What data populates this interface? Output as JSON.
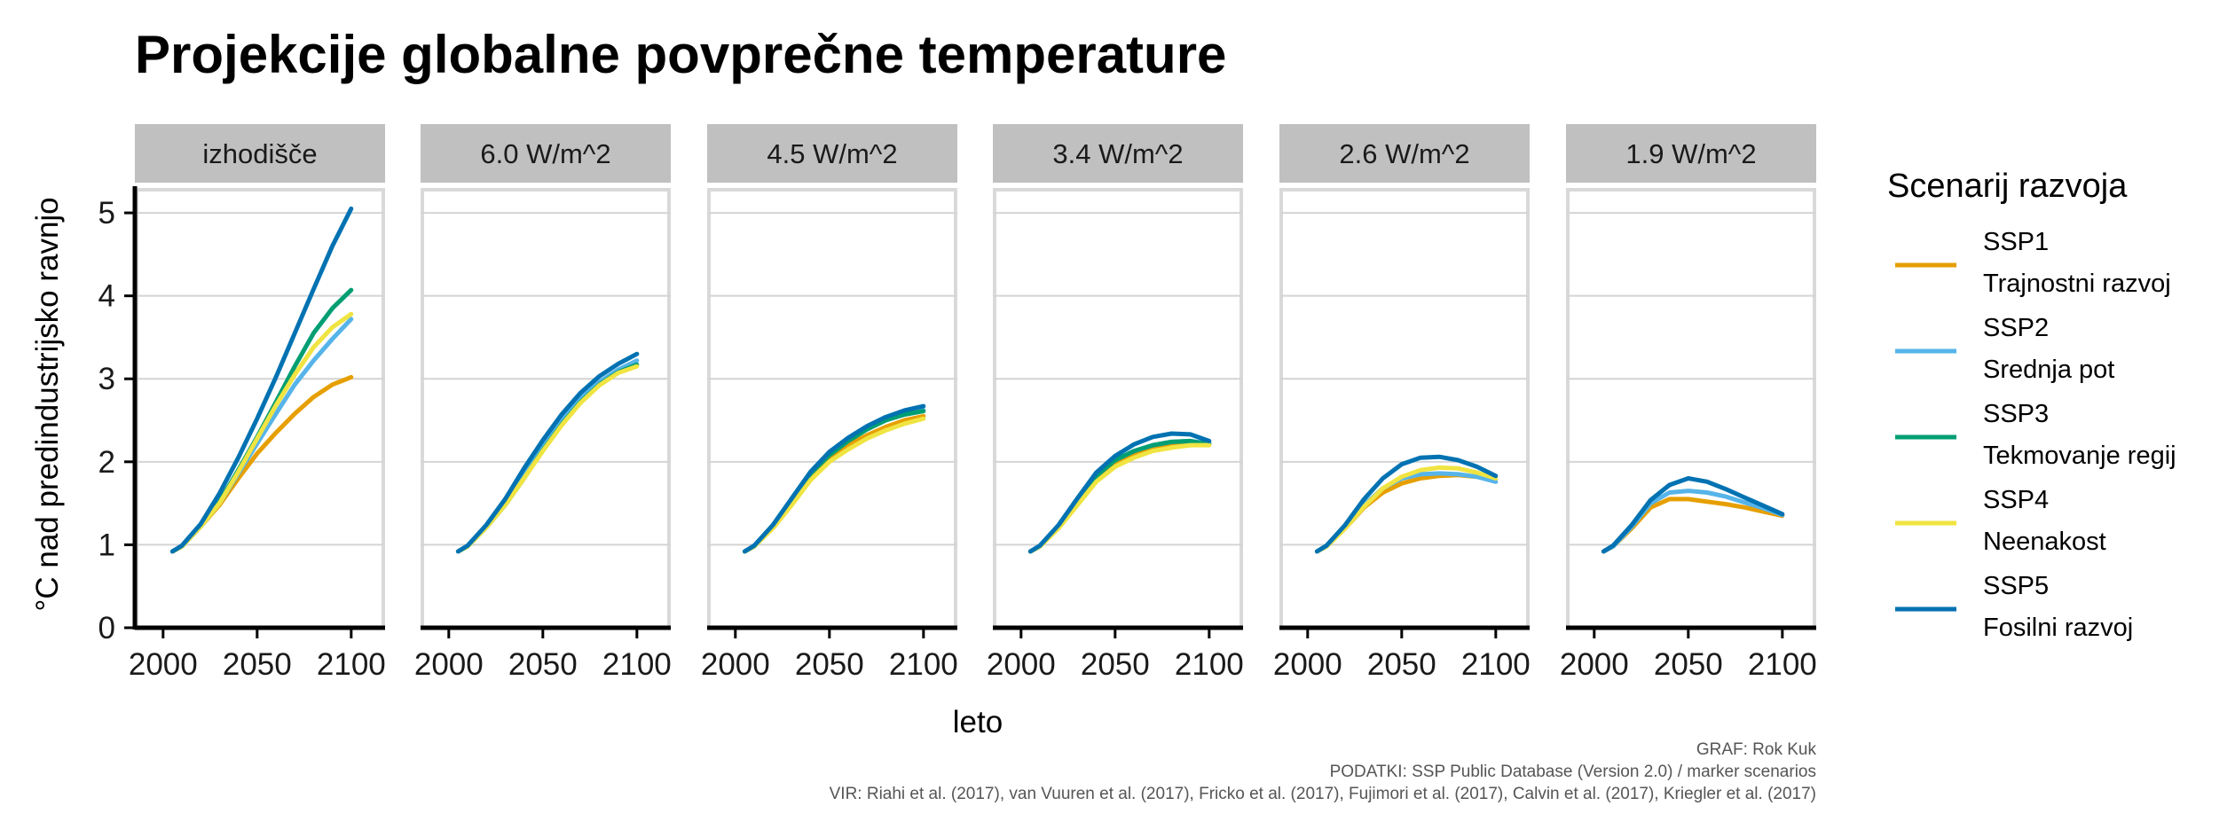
{
  "chart_data": {
    "type": "line",
    "title": "Projekcije globalne povprečne temperature",
    "xlabel": "leto",
    "ylabel": "°C nad predindustrijsko ravnjo",
    "xlim": [
      1985,
      2118
    ],
    "ylim": [
      0,
      5.3
    ],
    "x_ticks": [
      2000,
      2050,
      2100
    ],
    "y_ticks": [
      0,
      1,
      2,
      3,
      4,
      5
    ],
    "grid": "horizontal",
    "legend_position": "right",
    "legend_title": "Scenarij razvoja",
    "x": [
      2005,
      2010,
      2020,
      2030,
      2040,
      2050,
      2060,
      2070,
      2080,
      2090,
      2100
    ],
    "series_meta": [
      {
        "code": "SSP1",
        "name": "Trajnostni razvoj",
        "color": "#E69F00"
      },
      {
        "code": "SSP2",
        "name": "Srednja pot",
        "color": "#56B4E9"
      },
      {
        "code": "SSP3",
        "name": "Tekmovanje regij",
        "color": "#009E73"
      },
      {
        "code": "SSP4",
        "name": "Neenakost",
        "color": "#F0E442"
      },
      {
        "code": "SSP5",
        "name": "Fosilni razvoj",
        "color": "#0072B2"
      }
    ],
    "panels": [
      {
        "label": "izhodišče",
        "series": [
          {
            "code": "SSP1",
            "values": [
              0.92,
              0.98,
              1.22,
              1.48,
              1.8,
              2.1,
              2.35,
              2.58,
              2.78,
              2.93,
              3.02
            ]
          },
          {
            "code": "SSP2",
            "values": [
              0.92,
              0.98,
              1.22,
              1.5,
              1.86,
              2.22,
              2.58,
              2.93,
              3.22,
              3.48,
              3.72
            ]
          },
          {
            "code": "SSP3",
            "values": [
              0.92,
              0.98,
              1.22,
              1.52,
              1.9,
              2.3,
              2.72,
              3.15,
              3.55,
              3.85,
              4.07
            ]
          },
          {
            "code": "SSP4",
            "values": [
              0.92,
              0.98,
              1.22,
              1.5,
              1.88,
              2.28,
              2.68,
              3.05,
              3.38,
              3.62,
              3.78
            ]
          },
          {
            "code": "SSP5",
            "values": [
              0.92,
              0.99,
              1.25,
              1.62,
              2.05,
              2.52,
              3.02,
              3.55,
              4.08,
              4.6,
              5.05
            ]
          }
        ]
      },
      {
        "label": "6.0 W/m^2",
        "series": [
          {
            "code": "SSP2",
            "values": [
              0.92,
              0.98,
              1.22,
              1.5,
              1.85,
              2.2,
              2.5,
              2.76,
              2.96,
              3.11,
              3.22
            ]
          },
          {
            "code": "SSP3",
            "values": [
              0.92,
              0.98,
              1.21,
              1.48,
              1.8,
              2.14,
              2.45,
              2.72,
              2.93,
              3.08,
              3.17
            ]
          },
          {
            "code": "SSP4",
            "values": [
              0.92,
              0.98,
              1.21,
              1.48,
              1.8,
              2.13,
              2.44,
              2.71,
              2.92,
              3.07,
              3.15
            ]
          },
          {
            "code": "SSP5",
            "values": [
              0.92,
              0.99,
              1.24,
              1.55,
              1.92,
              2.26,
              2.57,
              2.83,
              3.03,
              3.18,
              3.3
            ]
          }
        ]
      },
      {
        "label": "4.5 W/m^2",
        "series": [
          {
            "code": "SSP1",
            "values": [
              0.92,
              0.98,
              1.22,
              1.53,
              1.85,
              2.05,
              2.2,
              2.32,
              2.42,
              2.5,
              2.55
            ]
          },
          {
            "code": "SSP2",
            "values": [
              0.92,
              0.98,
              1.22,
              1.53,
              1.87,
              2.09,
              2.26,
              2.4,
              2.51,
              2.58,
              2.62
            ]
          },
          {
            "code": "SSP3",
            "values": [
              0.92,
              0.98,
              1.22,
              1.53,
              1.86,
              2.08,
              2.25,
              2.39,
              2.5,
              2.57,
              2.61
            ]
          },
          {
            "code": "SSP4",
            "values": [
              0.92,
              0.98,
              1.2,
              1.48,
              1.78,
              2.0,
              2.15,
              2.28,
              2.38,
              2.46,
              2.52
            ]
          },
          {
            "code": "SSP5",
            "values": [
              0.92,
              0.99,
              1.24,
              1.56,
              1.88,
              2.12,
              2.29,
              2.43,
              2.54,
              2.62,
              2.67
            ]
          }
        ]
      },
      {
        "label": "3.4 W/m^2",
        "series": [
          {
            "code": "SSP1",
            "values": [
              0.92,
              0.98,
              1.22,
              1.52,
              1.8,
              1.98,
              2.08,
              2.15,
              2.2,
              2.22,
              2.22
            ]
          },
          {
            "code": "SSP2",
            "values": [
              0.92,
              0.98,
              1.22,
              1.53,
              1.83,
              2.02,
              2.13,
              2.2,
              2.24,
              2.25,
              2.22
            ]
          },
          {
            "code": "SSP3",
            "values": [
              0.92,
              0.98,
              1.22,
              1.53,
              1.83,
              2.02,
              2.13,
              2.2,
              2.24,
              2.25,
              2.21
            ]
          },
          {
            "code": "SSP4",
            "values": [
              0.92,
              0.98,
              1.2,
              1.48,
              1.76,
              1.94,
              2.05,
              2.13,
              2.17,
              2.2,
              2.2
            ]
          },
          {
            "code": "SSP5",
            "values": [
              0.92,
              0.99,
              1.24,
              1.56,
              1.87,
              2.07,
              2.21,
              2.3,
              2.34,
              2.33,
              2.25
            ]
          }
        ]
      },
      {
        "label": "2.6 W/m^2",
        "series": [
          {
            "code": "SSP1",
            "values": [
              0.92,
              0.98,
              1.2,
              1.45,
              1.63,
              1.74,
              1.8,
              1.83,
              1.84,
              1.82,
              1.8
            ]
          },
          {
            "code": "SSP2",
            "values": [
              0.92,
              0.98,
              1.21,
              1.48,
              1.68,
              1.8,
              1.85,
              1.86,
              1.85,
              1.82,
              1.76
            ]
          },
          {
            "code": "SSP4",
            "values": [
              0.92,
              0.98,
              1.2,
              1.46,
              1.68,
              1.82,
              1.9,
              1.93,
              1.92,
              1.87,
              1.8
            ]
          },
          {
            "code": "SSP5",
            "values": [
              0.92,
              0.99,
              1.24,
              1.55,
              1.8,
              1.97,
              2.05,
              2.06,
              2.02,
              1.94,
              1.83
            ]
          }
        ]
      },
      {
        "label": "1.9 W/m^2",
        "series": [
          {
            "code": "SSP1",
            "values": [
              0.92,
              0.98,
              1.2,
              1.45,
              1.55,
              1.55,
              1.52,
              1.49,
              1.45,
              1.4,
              1.35
            ]
          },
          {
            "code": "SSP2",
            "values": [
              0.92,
              0.98,
              1.22,
              1.5,
              1.63,
              1.65,
              1.63,
              1.58,
              1.51,
              1.44,
              1.36
            ]
          },
          {
            "code": "SSP5",
            "values": [
              0.92,
              0.99,
              1.24,
              1.54,
              1.72,
              1.8,
              1.76,
              1.67,
              1.57,
              1.47,
              1.37
            ]
          }
        ]
      }
    ]
  },
  "caption": {
    "line1": "GRAF: Rok Kuk",
    "line2": "PODATKI: SSP Public Database (Version 2.0) / marker scenarios",
    "line3": "VIR: Riahi et al. (2017), van Vuuren et al. (2017), Fricko et al. (2017), Fujimori et al. (2017), Calvin et al. (2017), Kriegler et al. (2017)"
  }
}
